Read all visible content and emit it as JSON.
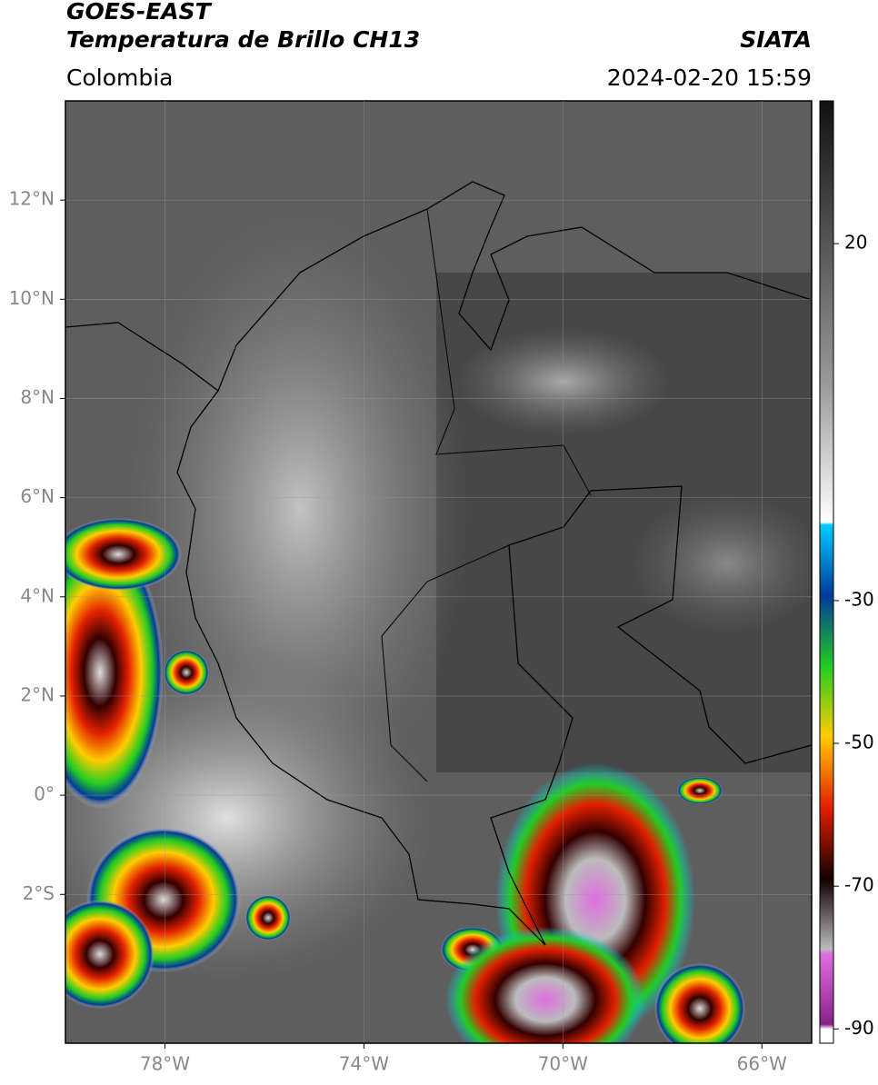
{
  "header": {
    "title": "GOES-EAST",
    "subtitle": "Temperatura de Brillo CH13",
    "region": "Colombia",
    "source": "SIATA",
    "timestamp": "2024-02-20 15:59"
  },
  "map": {
    "latlim": [
      -5,
      14
    ],
    "lonlim": [
      -80,
      -65
    ],
    "lat_ticks": [
      {
        "value": 12,
        "label": "12°N"
      },
      {
        "value": 10,
        "label": "10°N"
      },
      {
        "value": 8,
        "label": "8°N"
      },
      {
        "value": 6,
        "label": "6°N"
      },
      {
        "value": 4,
        "label": "4°N"
      },
      {
        "value": 2,
        "label": "2°N"
      },
      {
        "value": 0,
        "label": "0°"
      },
      {
        "value": -2,
        "label": "2°S"
      }
    ],
    "lon_ticks": [
      {
        "value": -78,
        "label": "78°W"
      },
      {
        "value": -74,
        "label": "74°W"
      },
      {
        "value": -70,
        "label": "70°W"
      },
      {
        "value": -66,
        "label": "66°W"
      }
    ]
  },
  "colorbar": {
    "lim": [
      -92,
      40
    ],
    "ticks": [
      20,
      -30,
      -50,
      -70,
      -90
    ]
  }
}
